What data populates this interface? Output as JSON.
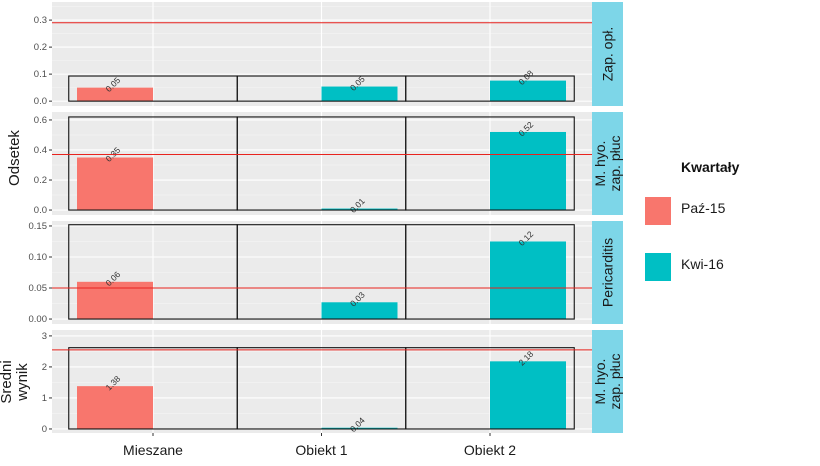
{
  "chart_data": {
    "type": "bar",
    "layout": "faceted, 4 rows, free y scales",
    "categories": [
      "Mieszane",
      "Obiekt 1",
      "Obiekt 2"
    ],
    "legend": {
      "title": "Kwartały",
      "position": "right",
      "entries": [
        {
          "name": "Paź-15",
          "color": "#F8766D"
        },
        {
          "name": "Kwi-16",
          "color": "#00BFC4"
        }
      ]
    },
    "grid": true,
    "strip_color": "#7DD6E8",
    "reference_line_color": "#E8231E",
    "facets": [
      {
        "strip": [
          "Zap. opł."
        ],
        "ylabel_group": "Odsetek",
        "ylim": [
          -0.018,
          0.367
        ],
        "ticks": [
          "0.0",
          "0.1",
          "0.2",
          "0.3"
        ],
        "tick_values": [
          0,
          0.1,
          0.2,
          0.3
        ],
        "reference_line": 0.29,
        "box_height": 0.093,
        "bars": [
          {
            "category": "Mieszane",
            "series": "Paź-15",
            "value": 0.05,
            "label": "0.05"
          },
          {
            "category": "Obiekt 1",
            "series": "Kwi-16",
            "value": 0.054,
            "label": "0.05"
          },
          {
            "category": "Obiekt 2",
            "series": "Kwi-16",
            "value": 0.076,
            "label": "0.08"
          }
        ]
      },
      {
        "strip": [
          "M. hyo.",
          "zap. płuc"
        ],
        "ylabel_group": "Odsetek",
        "ylim": [
          -0.033,
          0.653
        ],
        "ticks": [
          "0.0",
          "0.2",
          "0.4",
          "0.6"
        ],
        "tick_values": [
          0,
          0.2,
          0.4,
          0.6
        ],
        "reference_line": 0.37,
        "box_height": 0.62,
        "bars": [
          {
            "category": "Mieszane",
            "series": "Paź-15",
            "value": 0.35,
            "label": "0.35"
          },
          {
            "category": "Obiekt 1",
            "series": "Kwi-16",
            "value": 0.01,
            "label": "0.01"
          },
          {
            "category": "Obiekt 2",
            "series": "Kwi-16",
            "value": 0.52,
            "label": "0.52"
          }
        ]
      },
      {
        "strip": [
          "Pericarditis"
        ],
        "ylabel_group": "Odsetek",
        "ylim": [
          -0.008,
          0.158
        ],
        "ticks": [
          "0.00",
          "0.05",
          "0.10",
          "0.15"
        ],
        "tick_values": [
          0,
          0.05,
          0.1,
          0.15
        ],
        "reference_line": 0.05,
        "box_height": 0.152,
        "bars": [
          {
            "category": "Mieszane",
            "series": "Paź-15",
            "value": 0.06,
            "label": "0.06"
          },
          {
            "category": "Obiekt 1",
            "series": "Kwi-16",
            "value": 0.027,
            "label": "0.03"
          },
          {
            "category": "Obiekt 2",
            "series": "Kwi-16",
            "value": 0.125,
            "label": "0.12"
          }
        ]
      },
      {
        "strip": [
          "M. hyo.",
          "zap. płuc"
        ],
        "ylabel_group": "Średni wynik",
        "ylim": [
          -0.13,
          3.19
        ],
        "ticks": [
          "0",
          "1",
          "2",
          "3"
        ],
        "tick_values": [
          0,
          1,
          2,
          3
        ],
        "reference_line": 2.55,
        "box_height": 2.62,
        "bars": [
          {
            "category": "Mieszane",
            "series": "Paź-15",
            "value": 1.38,
            "label": "1.38"
          },
          {
            "category": "Obiekt 1",
            "series": "Kwi-16",
            "value": 0.04,
            "label": "0.04"
          },
          {
            "category": "Obiekt 2",
            "series": "Kwi-16",
            "value": 2.18,
            "label": "2.18"
          }
        ]
      }
    ],
    "ylabels": [
      {
        "lines": [
          "Odsetek"
        ]
      },
      {
        "lines": [
          "Średni",
          "wynik"
        ]
      }
    ]
  }
}
